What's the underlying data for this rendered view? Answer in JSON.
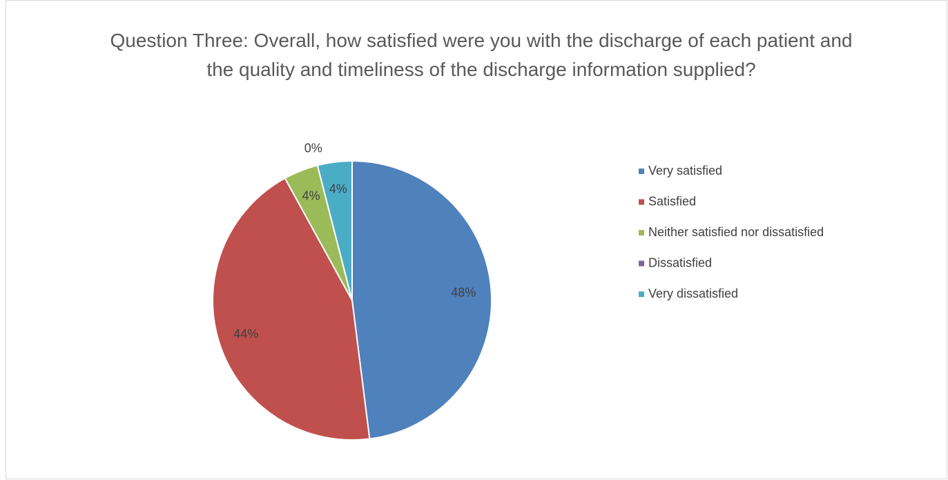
{
  "chart_data": {
    "type": "pie",
    "title": "Question Three: Overall, how satisfied were you with the discharge of each patient and the quality and timeliness of the discharge information supplied?",
    "categories": [
      "Very satisfied",
      "Satisfied",
      "Neither satisfied nor dissatisfied",
      "Dissatisfied",
      "Very dissatisfied"
    ],
    "values": [
      48,
      44,
      4,
      0,
      4
    ],
    "value_labels": [
      "48%",
      "44%",
      "4%",
      "0%",
      "4%"
    ],
    "colors": [
      "#4f81bd",
      "#c0504d",
      "#9bbb59",
      "#8064a2",
      "#4bacc6"
    ],
    "legend": "right"
  }
}
